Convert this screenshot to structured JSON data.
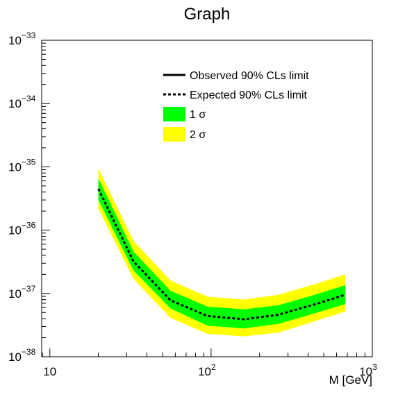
{
  "chart_data": {
    "type": "line",
    "title": "Graph",
    "xlabel": "M  [GeV]",
    "ylabel": "",
    "x_scale": "log",
    "y_scale": "log",
    "xlim": [
      8.9,
      1000
    ],
    "ylim": [
      1e-38,
      1e-33
    ],
    "x_ticks": [
      {
        "value": 10,
        "base": "10",
        "exp": ""
      },
      {
        "value": 100,
        "base": "10",
        "exp": "2"
      },
      {
        "value": 1000,
        "base": "10",
        "exp": "3"
      }
    ],
    "y_ticks": [
      {
        "value": 1e-38,
        "base": "10",
        "exp": "−38"
      },
      {
        "value": 1e-37,
        "base": "10",
        "exp": "−37"
      },
      {
        "value": 1e-36,
        "base": "10",
        "exp": "−36"
      },
      {
        "value": 1e-35,
        "base": "10",
        "exp": "−35"
      },
      {
        "value": 1e-34,
        "base": "10",
        "exp": "−34"
      },
      {
        "value": 1e-33,
        "base": "10",
        "exp": "−33"
      }
    ],
    "x": [
      20,
      33,
      56,
      95,
      160,
      260,
      420,
      680
    ],
    "expected": [
      4.5e-36,
      3.2e-37,
      7.8e-38,
      4.4e-38,
      3.9e-38,
      4.6e-38,
      6.5e-38,
      9.5e-38
    ],
    "band_1sigma_low": [
      3e-36,
      2.3e-37,
      5.8e-38,
      3.1e-38,
      2.8e-38,
      3.3e-38,
      4.7e-38,
      6.8e-38
    ],
    "band_1sigma_high": [
      6.6e-36,
      4.6e-37,
      1.1e-37,
      6.2e-38,
      5.6e-38,
      6.5e-38,
      9.2e-38,
      1.35e-37
    ],
    "band_2sigma_low": [
      2.2e-36,
      1.7e-37,
      4.1e-38,
      2.3e-38,
      2.1e-38,
      2.4e-38,
      3.5e-38,
      5.2e-38
    ],
    "band_2sigma_high": [
      9.5e-36,
      6.8e-37,
      1.6e-37,
      8.9e-38,
      8e-38,
      9.5e-38,
      1.35e-37,
      2e-37
    ],
    "legend": [
      {
        "label": "Observed 90% CLs limit",
        "style": "solid-line"
      },
      {
        "label": "Expected 90% CLs limit",
        "style": "dashed-line"
      },
      {
        "label": "1 σ",
        "style": "fill",
        "color": "#00ff00"
      },
      {
        "label": "2 σ",
        "style": "fill",
        "color": "#ffff00"
      }
    ],
    "legend_position": "top-right",
    "grid": false
  },
  "colors": {
    "band_1sigma": "#00ff00",
    "band_2sigma": "#ffff00",
    "line": "#000000"
  }
}
